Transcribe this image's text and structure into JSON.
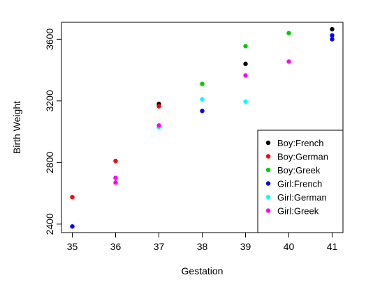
{
  "chart_data": {
    "type": "scatter",
    "title": "",
    "xlabel": "Gestation",
    "ylabel": "Birth Weight",
    "xlim": [
      34.75,
      41.25
    ],
    "ylim": [
      2345,
      3710
    ],
    "x_ticks": [
      35,
      36,
      37,
      38,
      39,
      40,
      41
    ],
    "y_ticks": [
      2400,
      2800,
      3200,
      3600
    ],
    "grid": false,
    "legend_position": "bottom-right",
    "series": [
      {
        "name": "Boy:French",
        "color": "#000000",
        "points": [
          {
            "x": 37,
            "y": 3180
          },
          {
            "x": 39,
            "y": 3440
          },
          {
            "x": 41,
            "y": 3665
          }
        ]
      },
      {
        "name": "Boy:German",
        "color": "#ff0000",
        "points": [
          {
            "x": 35,
            "y": 2575
          },
          {
            "x": 36,
            "y": 2810
          },
          {
            "x": 37,
            "y": 3165
          }
        ]
      },
      {
        "name": "Boy:Greek",
        "color": "#00cd00",
        "points": [
          {
            "x": 38,
            "y": 3310
          },
          {
            "x": 39,
            "y": 3555
          },
          {
            "x": 40,
            "y": 3640
          }
        ]
      },
      {
        "name": "Girl:French",
        "color": "#0000ff",
        "points": [
          {
            "x": 35,
            "y": 2385
          },
          {
            "x": 38,
            "y": 3135
          },
          {
            "x": 41,
            "y": 3600
          },
          {
            "x": 41,
            "y": 3625
          }
        ]
      },
      {
        "name": "Girl:German",
        "color": "#00ffff",
        "points": [
          {
            "x": 37,
            "y": 3030
          },
          {
            "x": 38,
            "y": 3210
          },
          {
            "x": 39,
            "y": 3195
          }
        ]
      },
      {
        "name": "Girl:Greek",
        "color": "#ff00ff",
        "points": [
          {
            "x": 36,
            "y": 2700
          },
          {
            "x": 36,
            "y": 2670
          },
          {
            "x": 37,
            "y": 3040
          },
          {
            "x": 39,
            "y": 3365
          },
          {
            "x": 40,
            "y": 3455
          }
        ]
      }
    ]
  }
}
